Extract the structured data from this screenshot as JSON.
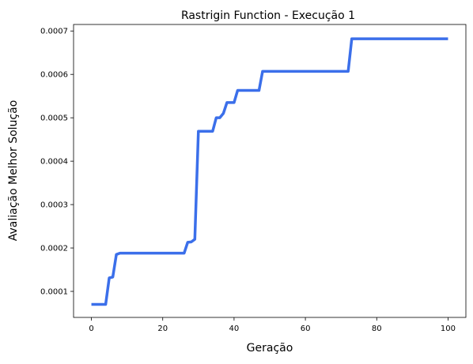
{
  "chart_data": {
    "type": "line",
    "title": "Rastrigin Function - Execução 1",
    "xlabel": "Geração",
    "ylabel": "Avaliação Melhor Solução",
    "xlim": [
      -5,
      105
    ],
    "ylim": [
      4e-05,
      0.000715
    ],
    "x_ticks": [
      0,
      20,
      40,
      60,
      80,
      100
    ],
    "x_tick_labels": [
      "0",
      "20",
      "40",
      "60",
      "80",
      "100"
    ],
    "y_ticks": [
      0.0001,
      0.0002,
      0.0003,
      0.0004,
      0.0005,
      0.0006,
      0.0007
    ],
    "y_tick_labels": [
      "0.0001",
      "0.0002",
      "0.0003",
      "0.0004",
      "0.0005",
      "0.0006",
      "0.0007"
    ],
    "grid": false,
    "series": [
      {
        "color": "#3b6fea",
        "points": [
          [
            0,
            7e-05
          ],
          [
            4,
            7e-05
          ],
          [
            5,
            0.000131
          ],
          [
            6,
            0.000133
          ],
          [
            7,
            0.000185
          ],
          [
            8,
            0.000188
          ],
          [
            26,
            0.000188
          ],
          [
            27,
            0.000213
          ],
          [
            28,
            0.000214
          ],
          [
            29,
            0.00022
          ],
          [
            30,
            0.000469
          ],
          [
            34,
            0.000469
          ],
          [
            35,
            0.0005
          ],
          [
            36,
            0.0005
          ],
          [
            37,
            0.00051
          ],
          [
            38,
            0.000535
          ],
          [
            40,
            0.000535
          ],
          [
            41,
            0.000563
          ],
          [
            47,
            0.000563
          ],
          [
            48,
            0.000607
          ],
          [
            72,
            0.000607
          ],
          [
            73,
            0.000682
          ],
          [
            100,
            0.000682
          ]
        ]
      }
    ]
  }
}
